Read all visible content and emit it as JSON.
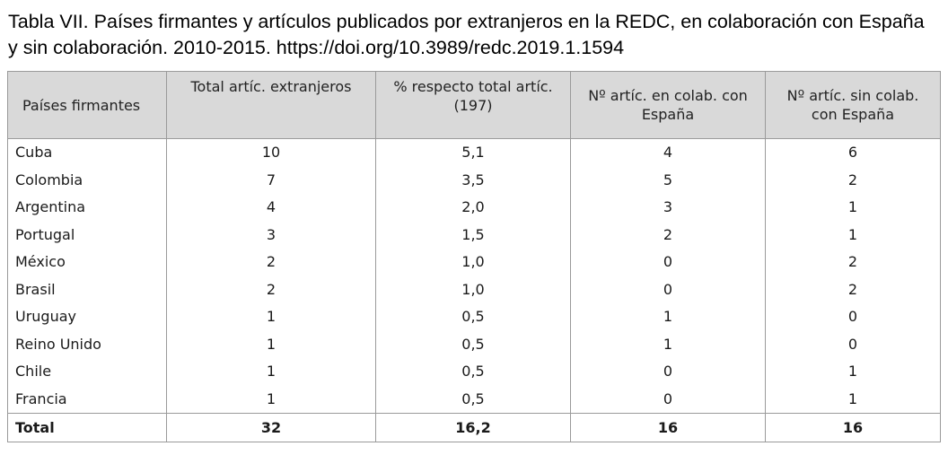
{
  "caption": {
    "line1": "Tabla VII. Países firmantes y artículos publicados por extranjeros en la REDC, en colaboración con España",
    "line2": "y sin colaboración. 2010-2015. https://doi.org/10.3989/redc.2019.1.1594"
  },
  "table": {
    "headers": [
      "Países firmantes",
      "Total artíc. extranjeros",
      "% respecto total artíc. (197)",
      "Nº artíc. en colab. con España",
      "Nº artíc. sin colab. con España"
    ],
    "rows": [
      {
        "country": "Cuba",
        "total": "10",
        "pct": "5,1",
        "colab": "4",
        "sin_colab": "6"
      },
      {
        "country": "Colombia",
        "total": "7",
        "pct": "3,5",
        "colab": "5",
        "sin_colab": "2"
      },
      {
        "country": "Argentina",
        "total": "4",
        "pct": "2,0",
        "colab": "3",
        "sin_colab": "1"
      },
      {
        "country": "Portugal",
        "total": "3",
        "pct": "1,5",
        "colab": "2",
        "sin_colab": "1"
      },
      {
        "country": "México",
        "total": "2",
        "pct": "1,0",
        "colab": "0",
        "sin_colab": "2"
      },
      {
        "country": "Brasil",
        "total": "2",
        "pct": "1,0",
        "colab": "0",
        "sin_colab": "2"
      },
      {
        "country": "Uruguay",
        "total": "1",
        "pct": "0,5",
        "colab": "1",
        "sin_colab": "0"
      },
      {
        "country": "Reino Unido",
        "total": "1",
        "pct": "0,5",
        "colab": "1",
        "sin_colab": "0"
      },
      {
        "country": "Chile",
        "total": "1",
        "pct": "0,5",
        "colab": "0",
        "sin_colab": "1"
      },
      {
        "country": "Francia",
        "total": "1",
        "pct": "0,5",
        "colab": "0",
        "sin_colab": "1"
      }
    ],
    "total": {
      "label": "Total",
      "total": "32",
      "pct": "16,2",
      "colab": "16",
      "sin_colab": "16"
    }
  }
}
